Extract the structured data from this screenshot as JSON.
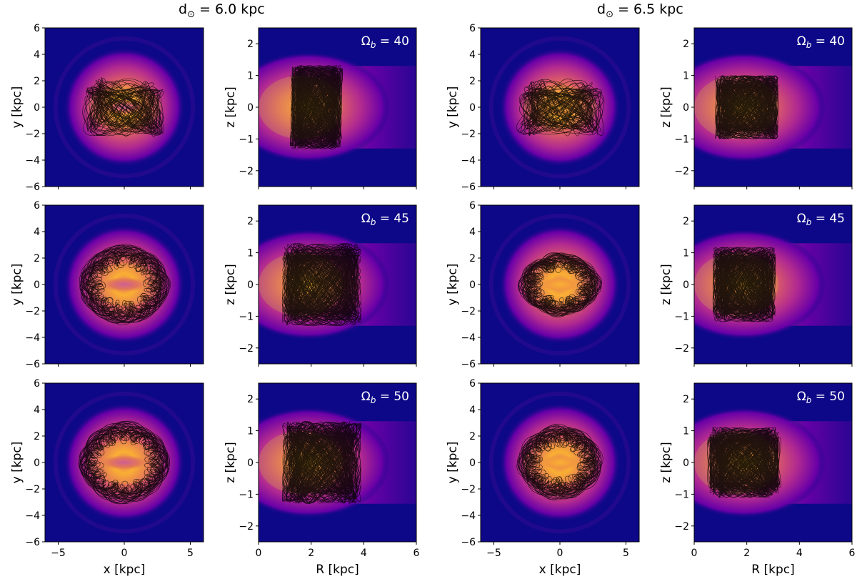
{
  "column_titles": [
    "d⊙ = 6.0 kpc",
    "d⊙ = 6.5 kpc"
  ],
  "column_title_parts": [
    {
      "prefix": "d",
      "sub": "⊙",
      "suffix": " = 6.0 kpc"
    },
    {
      "prefix": "d",
      "sub": "⊙",
      "suffix": " = 6.5 kpc"
    }
  ],
  "row_labels": [
    {
      "symbol": "Ω",
      "sub": "b",
      "text": " = 40",
      "value": 40
    },
    {
      "symbol": "Ω",
      "sub": "b",
      "text": " = 45",
      "value": 45
    },
    {
      "symbol": "Ω",
      "sub": "b",
      "text": " = 50",
      "value": 50
    }
  ],
  "colors": {
    "background": "#0d0887",
    "colormap": [
      "#0d0887",
      "#2c0594",
      "#6a00a8",
      "#b12a90",
      "#e16462",
      "#fca636",
      "#f0f921"
    ],
    "orbit": "#000000",
    "annotation": "#ffffff"
  },
  "chart_data": [
    {
      "type": "heatmap",
      "projection": "face-on",
      "xlabel": "x [kpc]",
      "ylabel": "y [kpc]",
      "xlim": [
        -6,
        6
      ],
      "ylim": [
        -6,
        6
      ],
      "xticks": [
        -5,
        0,
        5
      ],
      "yticks": [
        -6,
        -4,
        -2,
        0,
        2,
        4,
        6
      ],
      "tick_labels_x": [
        "−5",
        "0",
        "5"
      ],
      "tick_labels_y": [
        "−6",
        "−4",
        "−2",
        "0",
        "2",
        "4",
        "6"
      ],
      "density_extent_kpc": 4.6,
      "bar_half_length_kpc": 1.8,
      "orbit_region_kpc": {
        "x_half": 3.3,
        "y_half": 2.4
      }
    },
    {
      "type": "heatmap",
      "projection": "meridional",
      "xlabel": "R [kpc]",
      "ylabel": "z [kpc]",
      "xlim": [
        0,
        6
      ],
      "ylim": [
        -2.5,
        2.5
      ],
      "xticks": [
        0,
        2,
        4,
        6
      ],
      "yticks": [
        -2,
        -1,
        0,
        1,
        2
      ],
      "tick_labels_x": [
        "0",
        "2",
        "4",
        "6"
      ],
      "tick_labels_y": [
        "−2",
        "−1",
        "0",
        "1",
        "2"
      ],
      "orbit_region_kpc": {
        "R_min": 1.0,
        "R_max": 3.6,
        "z_half": 1.3
      }
    }
  ],
  "panels": [
    {
      "row": 0,
      "col": 0,
      "kind": "xy",
      "omega_b": 40,
      "d_sun": 6.0,
      "orbit_ring": false,
      "orbit_rx": 3.2,
      "orbit_ry": 2.3,
      "bar_len": 1.8,
      "seed": 11
    },
    {
      "row": 0,
      "col": 1,
      "kind": "rz",
      "omega_b": 40,
      "d_sun": 6.0,
      "R0": 1.2,
      "R1": 3.2,
      "zh": 1.35,
      "seed": 12
    },
    {
      "row": 0,
      "col": 2,
      "kind": "xy",
      "omega_b": 40,
      "d_sun": 6.5,
      "orbit_ring": false,
      "orbit_rx": 3.4,
      "orbit_ry": 2.3,
      "bar_len": 1.9,
      "seed": 13
    },
    {
      "row": 0,
      "col": 3,
      "kind": "rz",
      "omega_b": 40,
      "d_sun": 6.5,
      "R0": 0.8,
      "R1": 3.2,
      "zh": 1.0,
      "seed": 14
    },
    {
      "row": 1,
      "col": 0,
      "kind": "xy",
      "omega_b": 45,
      "d_sun": 6.0,
      "orbit_ring": true,
      "orbit_rx": 3.5,
      "orbit_ry": 3.1,
      "bar_len": 1.8,
      "seed": 21
    },
    {
      "row": 1,
      "col": 1,
      "kind": "rz",
      "omega_b": 45,
      "d_sun": 6.0,
      "R0": 0.9,
      "R1": 3.9,
      "zh": 1.3,
      "seed": 22
    },
    {
      "row": 1,
      "col": 2,
      "kind": "xy",
      "omega_b": 45,
      "d_sun": 6.5,
      "orbit_ring": true,
      "orbit_rx": 3.2,
      "orbit_ry": 2.5,
      "bar_len": 1.5,
      "seed": 23
    },
    {
      "row": 1,
      "col": 3,
      "kind": "rz",
      "omega_b": 45,
      "d_sun": 6.5,
      "R0": 0.7,
      "R1": 3.1,
      "zh": 1.2,
      "seed": 24
    },
    {
      "row": 2,
      "col": 0,
      "kind": "xy",
      "omega_b": 50,
      "d_sun": 6.0,
      "orbit_ring": true,
      "orbit_rx": 3.5,
      "orbit_ry": 3.2,
      "bar_len": 1.8,
      "seed": 31
    },
    {
      "row": 2,
      "col": 1,
      "kind": "rz",
      "omega_b": 50,
      "d_sun": 6.0,
      "R0": 0.9,
      "R1": 3.9,
      "zh": 1.3,
      "seed": 32
    },
    {
      "row": 2,
      "col": 2,
      "kind": "xy",
      "omega_b": 50,
      "d_sun": 6.5,
      "orbit_ring": true,
      "orbit_rx": 3.3,
      "orbit_ry": 2.9,
      "bar_len": 1.5,
      "seed": 33
    },
    {
      "row": 2,
      "col": 3,
      "kind": "rz",
      "omega_b": 50,
      "d_sun": 6.5,
      "R0": 0.5,
      "R1": 3.3,
      "zh": 1.15,
      "seed": 34
    }
  ]
}
